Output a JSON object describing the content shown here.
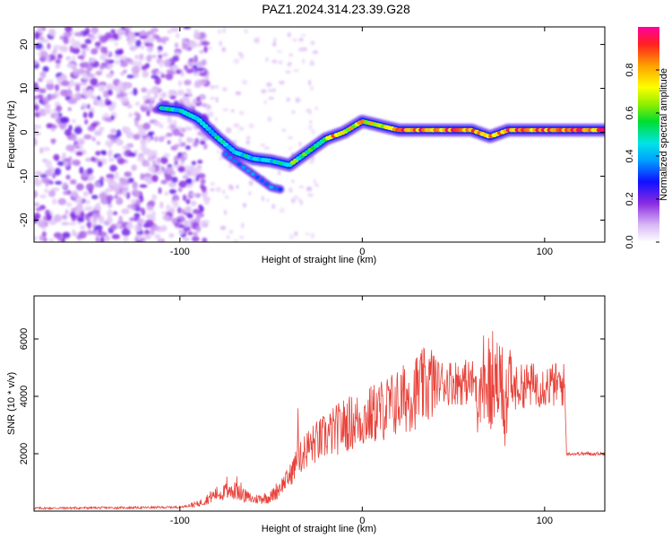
{
  "title": "PAZ1.2024.314.23.39.G28",
  "chart_data": [
    {
      "type": "heatmap",
      "xlabel": "Height of straight line (km)",
      "ylabel": "Frequency (Hz)",
      "xlim": [
        -180,
        133
      ],
      "ylim": [
        -25,
        24
      ],
      "xticks": [
        -100,
        0,
        100
      ],
      "yticks": [
        -20,
        -10,
        0,
        10,
        20
      ],
      "colorbar": {
        "label": "Normalized spectral amplitude",
        "range": [
          0,
          1
        ],
        "ticks": [
          0.0,
          0.2,
          0.4,
          0.6,
          0.8
        ],
        "colormap": "white-purple-blue-cyan-green-yellow-orange-red-magenta"
      },
      "ridge": {
        "x": [
          -110,
          -100,
          -90,
          -80,
          -70,
          -60,
          -50,
          -40,
          -30,
          -20,
          -10,
          0,
          10,
          20,
          40,
          60,
          70,
          80,
          100,
          133
        ],
        "y": [
          5.5,
          5,
          3,
          -1,
          -4.5,
          -6,
          -6.5,
          -7.5,
          -4.5,
          -1.5,
          0,
          2.5,
          1.5,
          0.5,
          0.5,
          0.5,
          -1,
          0.5,
          0.5,
          0.5
        ]
      },
      "branch": {
        "x": [
          -75,
          -65,
          -55,
          -50,
          -45
        ],
        "y": [
          -5,
          -8,
          -11,
          -12.5,
          -13
        ]
      },
      "grid": false
    },
    {
      "type": "line",
      "xlabel": "Height of straight line (km)",
      "ylabel": "SNR (10 * v/v)",
      "xlim": [
        -180,
        133
      ],
      "ylim": [
        0,
        7500
      ],
      "xticks": [
        -100,
        0,
        100
      ],
      "yticks": [
        2000,
        4000,
        6000
      ],
      "color": "#e8423a",
      "envelope": {
        "x": [
          -180,
          -120,
          -100,
          -90,
          -80,
          -70,
          -60,
          -50,
          -40,
          -35,
          -30,
          -20,
          -10,
          0,
          10,
          20,
          30,
          40,
          50,
          60,
          70,
          80,
          90,
          100,
          110,
          111,
          112,
          120,
          133
        ],
        "y": [
          100,
          120,
          140,
          250,
          600,
          700,
          400,
          500,
          1200,
          1800,
          2200,
          2600,
          3000,
          3200,
          3500,
          3800,
          4200,
          4500,
          4500,
          4500,
          4300,
          4200,
          4400,
          4400,
          4400,
          4400,
          2000,
          2000,
          2000
        ]
      },
      "grid": false
    }
  ]
}
